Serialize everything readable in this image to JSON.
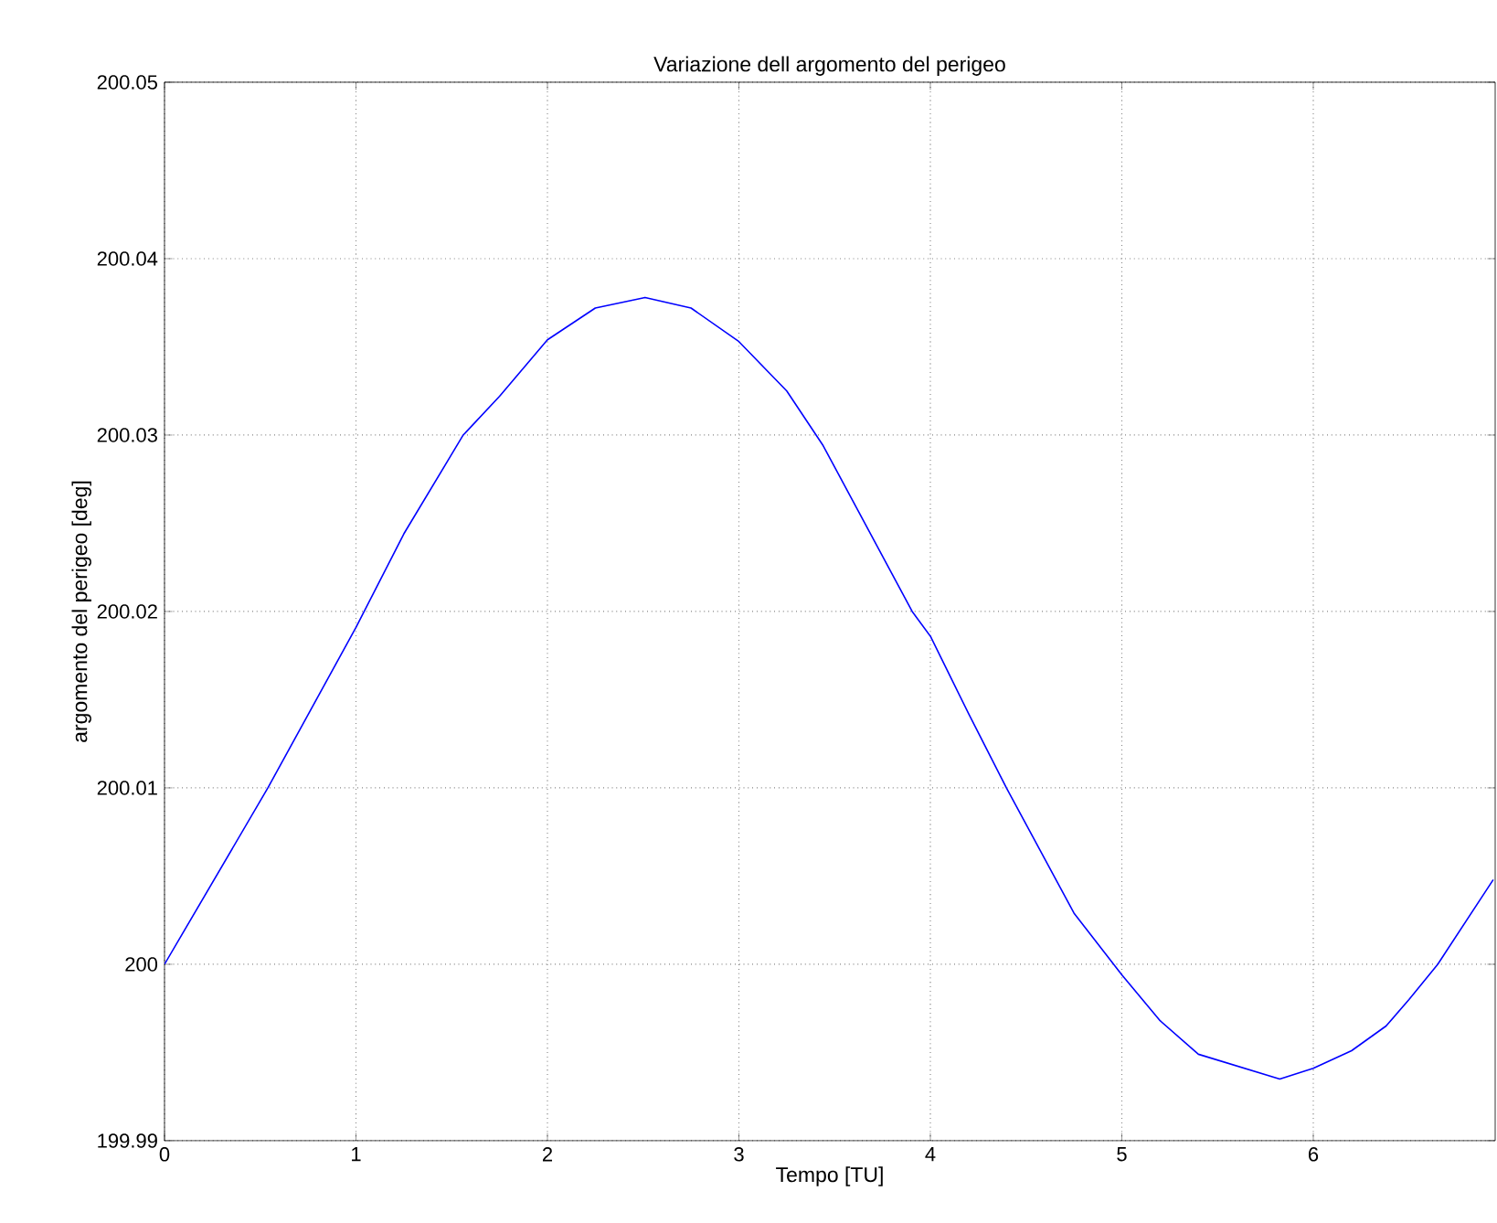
{
  "chart_data": {
    "type": "line",
    "title": "Variazione dell argomento del perigeo",
    "xlabel": "Tempo [TU]",
    "ylabel": "argomento del perigeo [deg]",
    "x": [
      0,
      0.54,
      1,
      1.25,
      1.56,
      1.75,
      2,
      2.25,
      2.51,
      2.75,
      3,
      3.25,
      3.44,
      3.905,
      4,
      4.2,
      4.397,
      4.75,
      5,
      5.2,
      5.4,
      5.825,
      6,
      6.2,
      6.38,
      6.5,
      6.65,
      6.94
    ],
    "series": [
      {
        "color": "#0000ff",
        "values": [
          200.0,
          200.01,
          200.0191,
          200.0244,
          200.03,
          200.0322,
          200.0354,
          200.0372,
          200.0378,
          200.0372,
          200.0353,
          200.0325,
          200.0294,
          200.02,
          200.0186,
          200.0142,
          200.01,
          200.0029,
          199.9994,
          199.9968,
          199.9949,
          199.9935,
          199.9941,
          199.9951,
          199.9965,
          199.998,
          200.0,
          200.0048
        ]
      }
    ],
    "xlim": [
      0,
      6.95
    ],
    "ylim": [
      199.99,
      200.05
    ],
    "xticks": [
      0,
      1,
      2,
      3,
      4,
      5,
      6
    ],
    "yticks": [
      199.99,
      200,
      200.01,
      200.02,
      200.03,
      200.04,
      200.05
    ],
    "grid": true
  }
}
